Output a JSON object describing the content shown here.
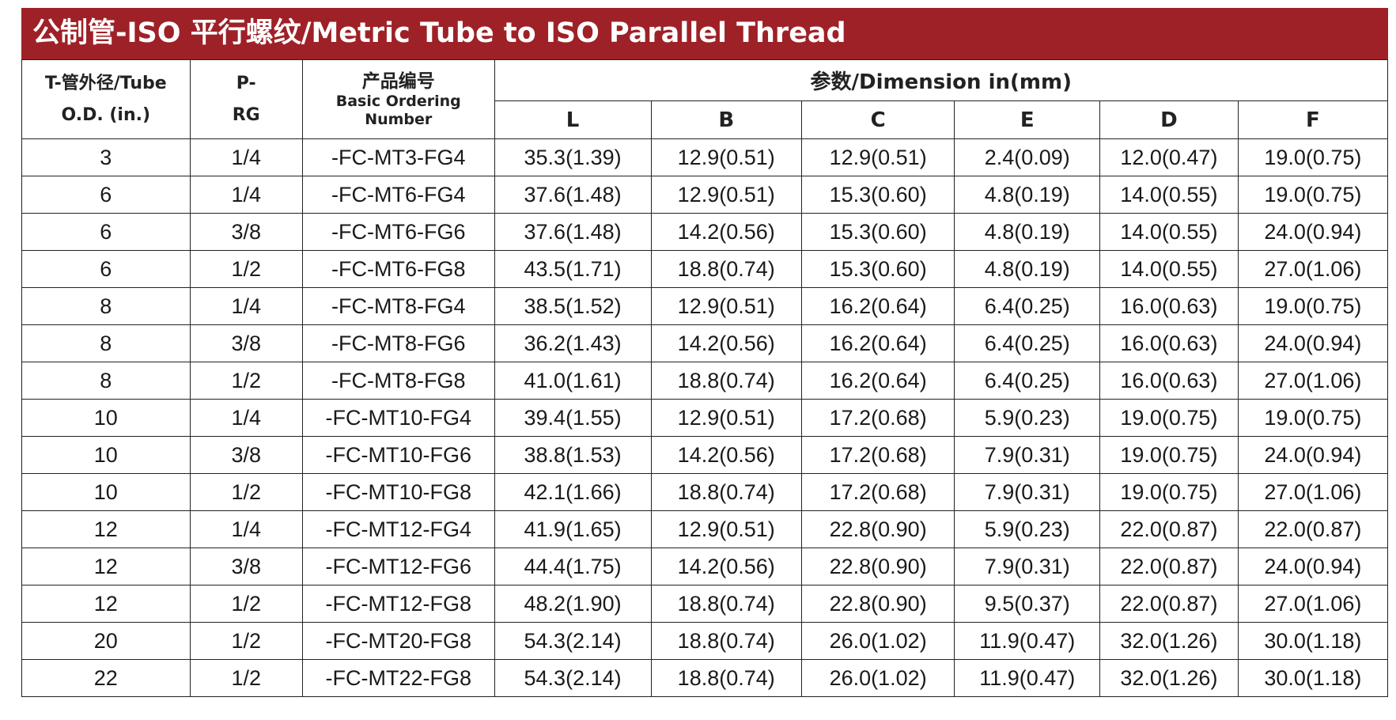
{
  "title": "公制管-ISO 平行螺纹/Metric Tube to ISO Parallel Thread",
  "headers": {
    "tube_line1": "T-管外径/Tube",
    "tube_line2": "O.D.  (in.)",
    "p_line1": "P-",
    "p_line2": "RG",
    "number_zh": "产品编号",
    "number_en_line1": "Basic Ordering",
    "number_en_line2": "Number",
    "dimension": "参数/Dimension  in(mm)",
    "dims": [
      "L",
      "B",
      "C",
      "E",
      "D",
      "F"
    ]
  },
  "rows": [
    [
      "3",
      "1/4",
      "-FC-MT3-FG4",
      "35.3(1.39)",
      "12.9(0.51)",
      "12.9(0.51)",
      "2.4(0.09)",
      "12.0(0.47)",
      "19.0(0.75)"
    ],
    [
      "6",
      "1/4",
      "-FC-MT6-FG4",
      "37.6(1.48)",
      "12.9(0.51)",
      "15.3(0.60)",
      "4.8(0.19)",
      "14.0(0.55)",
      "19.0(0.75)"
    ],
    [
      "6",
      "3/8",
      "-FC-MT6-FG6",
      "37.6(1.48)",
      "14.2(0.56)",
      "15.3(0.60)",
      "4.8(0.19)",
      "14.0(0.55)",
      "24.0(0.94)"
    ],
    [
      "6",
      "1/2",
      "-FC-MT6-FG8",
      "43.5(1.71)",
      "18.8(0.74)",
      "15.3(0.60)",
      "4.8(0.19)",
      "14.0(0.55)",
      "27.0(1.06)"
    ],
    [
      "8",
      "1/4",
      "-FC-MT8-FG4",
      "38.5(1.52)",
      "12.9(0.51)",
      "16.2(0.64)",
      "6.4(0.25)",
      "16.0(0.63)",
      "19.0(0.75)"
    ],
    [
      "8",
      "3/8",
      "-FC-MT8-FG6",
      "36.2(1.43)",
      "14.2(0.56)",
      "16.2(0.64)",
      "6.4(0.25)",
      "16.0(0.63)",
      "24.0(0.94)"
    ],
    [
      "8",
      "1/2",
      "-FC-MT8-FG8",
      "41.0(1.61)",
      "18.8(0.74)",
      "16.2(0.64)",
      "6.4(0.25)",
      "16.0(0.63)",
      "27.0(1.06)"
    ],
    [
      "10",
      "1/4",
      "-FC-MT10-FG4",
      "39.4(1.55)",
      "12.9(0.51)",
      "17.2(0.68)",
      "5.9(0.23)",
      "19.0(0.75)",
      "19.0(0.75)"
    ],
    [
      "10",
      "3/8",
      "-FC-MT10-FG6",
      "38.8(1.53)",
      "14.2(0.56)",
      "17.2(0.68)",
      "7.9(0.31)",
      "19.0(0.75)",
      "24.0(0.94)"
    ],
    [
      "10",
      "1/2",
      "-FC-MT10-FG8",
      "42.1(1.66)",
      "18.8(0.74)",
      "17.2(0.68)",
      "7.9(0.31)",
      "19.0(0.75)",
      "27.0(1.06)"
    ],
    [
      "12",
      "1/4",
      "-FC-MT12-FG4",
      "41.9(1.65)",
      "12.9(0.51)",
      "22.8(0.90)",
      "5.9(0.23)",
      "22.0(0.87)",
      "22.0(0.87)"
    ],
    [
      "12",
      "3/8",
      "-FC-MT12-FG6",
      "44.4(1.75)",
      "14.2(0.56)",
      "22.8(0.90)",
      "7.9(0.31)",
      "22.0(0.87)",
      "24.0(0.94)"
    ],
    [
      "12",
      "1/2",
      "-FC-MT12-FG8",
      "48.2(1.90)",
      "18.8(0.74)",
      "22.8(0.90)",
      "9.5(0.37)",
      "22.0(0.87)",
      "27.0(1.06)"
    ],
    [
      "20",
      "1/2",
      "-FC-MT20-FG8",
      "54.3(2.14)",
      "18.8(0.74)",
      "26.0(1.02)",
      "11.9(0.47)",
      "32.0(1.26)",
      "30.0(1.18)"
    ],
    [
      "22",
      "1/2",
      "-FC-MT22-FG8",
      "54.3(2.14)",
      "18.8(0.74)",
      "26.0(1.02)",
      "11.9(0.47)",
      "32.0(1.26)",
      "30.0(1.18)"
    ]
  ],
  "colors": {
    "title_bg": "#9e2127",
    "title_text": "#ffffff",
    "border": "#222222"
  }
}
